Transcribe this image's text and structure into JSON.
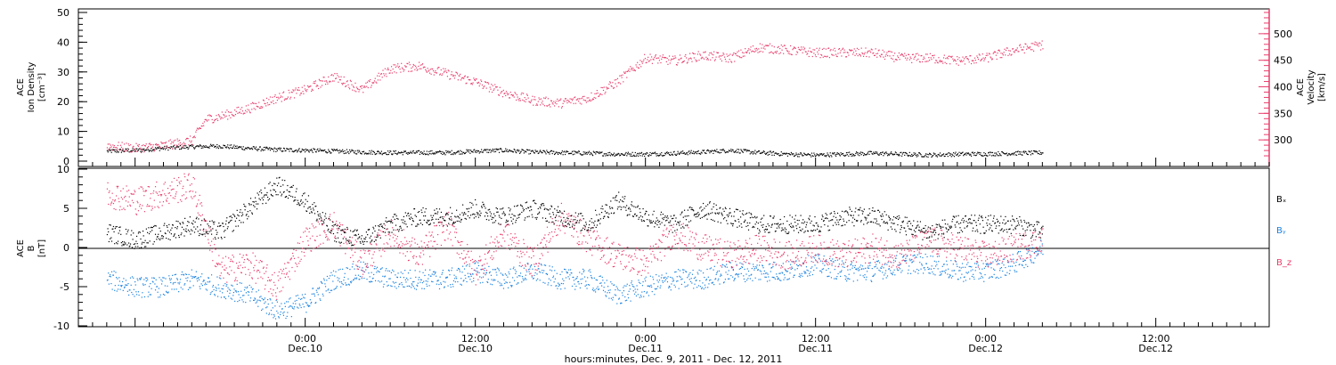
{
  "colors": {
    "black": "#000000",
    "pink": "#e83d6b",
    "blue": "#1a82e0"
  },
  "chart_data": [
    {
      "type": "scatter",
      "panel": "top",
      "ylabel_left": [
        "ACE",
        "Ion Density",
        "[cm⁻³]"
      ],
      "ylabel_right": [
        "ACE",
        "Velocity",
        "[km/s]"
      ],
      "y_ticks_left": [
        "50",
        "40",
        "30",
        "20",
        "10",
        "0"
      ],
      "y_ticks_right": [
        "500",
        "450",
        "400",
        "350",
        "300"
      ],
      "ylim_left": [
        0,
        50
      ],
      "ylim_right": [
        260,
        540
      ],
      "grid": false,
      "series": [
        {
          "axis": "left",
          "color": "#000000",
          "x_hours": [
            0,
            2,
            4,
            6,
            8,
            10,
            12,
            14,
            16,
            18,
            20,
            22,
            24,
            26,
            28,
            30,
            32,
            34,
            36,
            38,
            40,
            42,
            44,
            46,
            48,
            50,
            52,
            54,
            56,
            58,
            60,
            62,
            64,
            66
          ],
          "values": [
            3.5,
            3.8,
            4.5,
            5.0,
            5.2,
            4.5,
            4.0,
            3.8,
            3.5,
            3.2,
            3.0,
            3.0,
            3.0,
            3.5,
            3.8,
            3.2,
            3.0,
            2.8,
            2.5,
            2.5,
            2.8,
            3.2,
            3.8,
            3.0,
            2.5,
            2.2,
            2.5,
            2.8,
            2.5,
            2.2,
            2.5,
            2.6,
            2.8,
            3.0
          ]
        },
        {
          "axis": "right",
          "color": "#e83d6b",
          "x_hours": [
            0,
            2,
            4,
            6,
            7,
            8,
            10,
            12,
            14,
            16,
            18,
            20,
            22,
            24,
            26,
            28,
            30,
            32,
            34,
            36,
            38,
            40,
            42,
            44,
            46,
            48,
            50,
            52,
            54,
            56,
            58,
            60,
            62,
            64,
            66
          ],
          "values": [
            290,
            285,
            290,
            300,
            340,
            345,
            360,
            380,
            395,
            420,
            395,
            435,
            440,
            425,
            410,
            390,
            375,
            370,
            380,
            410,
            455,
            450,
            460,
            455,
            475,
            470,
            465,
            465,
            465,
            455,
            455,
            450,
            455,
            470,
            480
          ]
        }
      ]
    },
    {
      "type": "scatter",
      "panel": "bottom",
      "ylabel": [
        "ACE",
        "B",
        "[nT]"
      ],
      "y_ticks": [
        "10",
        "5",
        "0",
        "-5",
        "-10"
      ],
      "ylim": [
        -10,
        10
      ],
      "grid": false,
      "x_tick_labels": [
        {
          "time": "0:00",
          "date": "Dec.10",
          "hour": 12
        },
        {
          "time": "12:00",
          "date": "Dec.10",
          "hour": 24
        },
        {
          "time": "0:00",
          "date": "Dec.11",
          "hour": 36
        },
        {
          "time": "12:00",
          "date": "Dec.11",
          "hour": 48
        },
        {
          "time": "0:00",
          "date": "Dec.12",
          "hour": 60
        },
        {
          "time": "12:00",
          "date": "Dec.12",
          "hour": 72
        }
      ],
      "xlabel": "hours:minutes, Dec. 9, 2011 - Dec. 12, 2011",
      "series": [
        {
          "name": "Bₓ",
          "color": "#000000",
          "x_hours": [
            0,
            2,
            4,
            6,
            8,
            10,
            12,
            14,
            16,
            18,
            20,
            22,
            24,
            26,
            28,
            30,
            32,
            34,
            36,
            38,
            40,
            42,
            44,
            46,
            48,
            50,
            52,
            54,
            56,
            58,
            60,
            62,
            64,
            66
          ],
          "values": [
            2,
            1,
            2,
            3,
            2,
            5,
            8,
            6,
            2,
            1,
            3,
            4,
            4,
            5,
            4,
            5,
            4,
            3,
            6,
            4,
            3,
            5,
            4,
            3,
            3,
            3,
            4,
            4,
            3,
            2,
            3,
            3,
            3,
            2
          ]
        },
        {
          "name": "Bᵧ",
          "color": "#1a82e0",
          "x_hours": [
            0,
            2,
            4,
            6,
            8,
            10,
            12,
            14,
            16,
            18,
            20,
            22,
            24,
            26,
            28,
            30,
            32,
            34,
            36,
            38,
            40,
            42,
            44,
            46,
            48,
            50,
            52,
            54,
            56,
            58,
            60,
            62,
            64,
            66
          ],
          "values": [
            -4,
            -5,
            -5,
            -4,
            -5,
            -6,
            -8,
            -7,
            -4,
            -3,
            -4,
            -4,
            -4,
            -3,
            -4,
            -3,
            -4,
            -4,
            -6,
            -5,
            -4,
            -4,
            -3,
            -3,
            -3,
            -2,
            -3,
            -3,
            -2,
            -2,
            -3,
            -3,
            -2,
            0
          ]
        },
        {
          "name": "B_z",
          "color": "#e83d6b",
          "x_hours": [
            0,
            2,
            4,
            6,
            8,
            10,
            12,
            14,
            16,
            18,
            20,
            22,
            24,
            26,
            28,
            30,
            32,
            34,
            36,
            38,
            40,
            42,
            44,
            46,
            48,
            50,
            52,
            54,
            56,
            58,
            60,
            62,
            64,
            66
          ],
          "values": [
            7,
            6,
            7,
            8,
            -3,
            -2,
            -5,
            1,
            3,
            -2,
            2,
            -1,
            3,
            -3,
            2,
            -2,
            4,
            1,
            -1,
            -2,
            2,
            0,
            -1,
            0,
            -1,
            0,
            -1,
            0,
            -1,
            1,
            0,
            -1,
            0,
            1
          ]
        }
      ]
    }
  ]
}
